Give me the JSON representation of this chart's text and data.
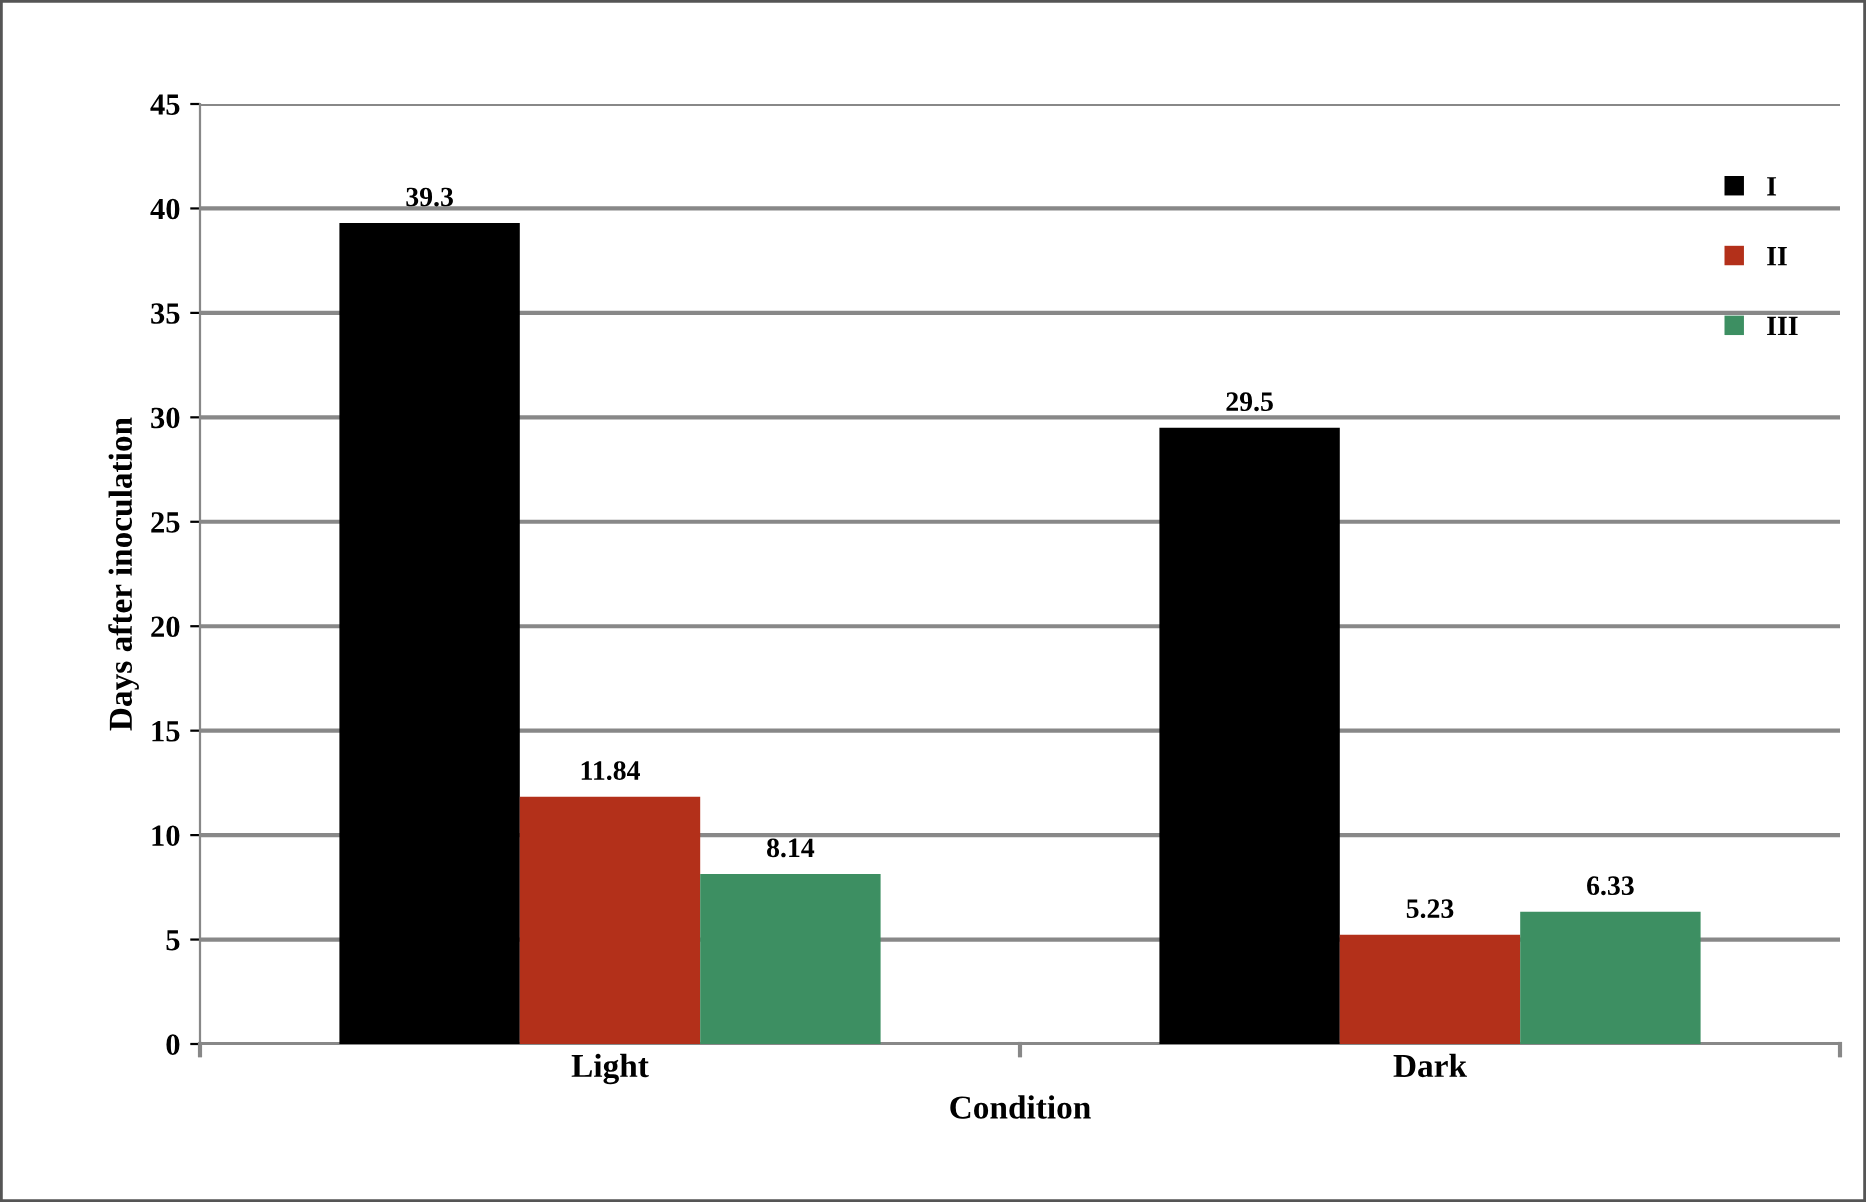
{
  "chart_data": {
    "type": "bar",
    "xlabel": "Condition",
    "ylabel": "Days after inoculation",
    "categories": [
      "Light",
      "Dark"
    ],
    "series": [
      {
        "name": "I",
        "color": "#000000",
        "values": [
          39.3,
          29.5
        ]
      },
      {
        "name": "II",
        "color": "#b3301a",
        "values": [
          11.84,
          5.23
        ]
      },
      {
        "name": "III",
        "color": "#3d8f62",
        "values": [
          8.14,
          6.33
        ]
      }
    ],
    "ylim": [
      0,
      45
    ],
    "yticks": [
      0,
      5,
      10,
      15,
      20,
      25,
      30,
      35,
      40,
      45
    ],
    "grid": "y",
    "legend": "top right",
    "data_labels": true
  }
}
